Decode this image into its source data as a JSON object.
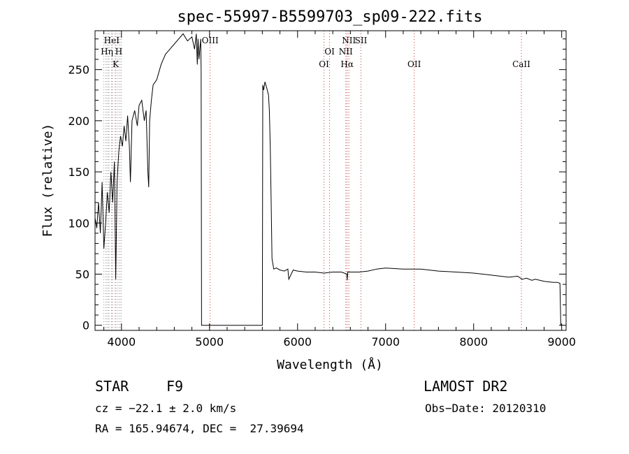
{
  "chart_data": {
    "type": "line",
    "title": "spec-55997-B5599703_sp09-222.fits",
    "xlabel": "Wavelength (Å)",
    "ylabel": "Flux (relative)",
    "xlim": [
      3700,
      9050
    ],
    "ylim": [
      -5,
      288
    ],
    "xticks": [
      4000,
      5000,
      6000,
      7000,
      8000,
      9000
    ],
    "yticks": [
      0,
      50,
      100,
      150,
      200,
      250
    ],
    "grid": false,
    "spectrum": {
      "x": [
        3700,
        3720,
        3740,
        3760,
        3780,
        3800,
        3820,
        3840,
        3860,
        3880,
        3900,
        3920,
        3935,
        3950,
        3970,
        3990,
        4010,
        4030,
        4050,
        4070,
        4090,
        4102,
        4120,
        4150,
        4180,
        4200,
        4230,
        4260,
        4280,
        4300,
        4310,
        4320,
        4340,
        4360,
        4400,
        4450,
        4500,
        4550,
        4600,
        4650,
        4700,
        4750,
        4800,
        4830,
        4850,
        4861,
        4870,
        4880,
        4890,
        4900,
        4905,
        4910,
        4920,
        5600,
        5605,
        5615,
        5630,
        5650,
        5670,
        5680,
        5690,
        5700,
        5710,
        5730,
        5760,
        5800,
        5850,
        5890,
        5900,
        5950,
        6000,
        6100,
        6200,
        6300,
        6400,
        6500,
        6560,
        6563,
        6570,
        6600,
        6700,
        6800,
        6900,
        7000,
        7200,
        7400,
        7600,
        7800,
        8000,
        8200,
        8400,
        8500,
        8550,
        8600,
        8662,
        8700,
        8800,
        8900,
        8950,
        8980,
        8985,
        8990,
        9000
      ],
      "y": [
        105,
        95,
        120,
        90,
        140,
        75,
        100,
        130,
        110,
        150,
        120,
        160,
        45,
        140,
        170,
        185,
        175,
        195,
        180,
        205,
        175,
        140,
        200,
        210,
        195,
        215,
        220,
        200,
        210,
        150,
        135,
        200,
        220,
        235,
        240,
        255,
        265,
        270,
        275,
        280,
        285,
        278,
        282,
        270,
        285,
        255,
        280,
        260,
        270,
        280,
        250,
        0,
        0,
        0,
        235,
        230,
        238,
        232,
        225,
        210,
        175,
        120,
        65,
        55,
        56,
        54,
        53,
        55,
        45,
        54,
        53,
        52,
        52,
        51,
        52,
        52,
        50,
        44,
        52,
        52,
        52,
        53,
        55,
        56,
        55,
        55,
        53,
        52,
        51,
        49,
        47,
        48,
        45,
        46,
        44,
        45,
        43,
        42,
        42,
        41,
        20,
        0,
        0
      ]
    },
    "emission_lines": [
      {
        "label": "HeI",
        "wave": 3889,
        "row": 0,
        "color": "#cc3333"
      },
      {
        "label": "Hη",
        "wave": 3835,
        "row": 1,
        "color": "#999999"
      },
      {
        "label": "H",
        "wave": 3970,
        "row": 1,
        "color": "#999999"
      },
      {
        "label": "K",
        "wave": 3934,
        "row": 2,
        "color": "#999999"
      },
      {
        "label": "OIII",
        "wave": 5007,
        "row": 0,
        "color": "#cc3333"
      },
      {
        "label": "OI",
        "wave": 6364,
        "row": 1,
        "color": "#cc3333"
      },
      {
        "label": "OI",
        "wave": 6300,
        "row": 2,
        "color": "#cc3333"
      },
      {
        "label": "NII",
        "wave": 6583,
        "row": 0,
        "color": "#cc3333"
      },
      {
        "label": "SII",
        "wave": 6720,
        "row": 0,
        "color": "#cc3333"
      },
      {
        "label": "NII",
        "wave": 6548,
        "row": 1,
        "color": "#cc3333"
      },
      {
        "label": "Hα",
        "wave": 6563,
        "row": 2,
        "color": "#cc3333"
      },
      {
        "label": "OII",
        "wave": 7325,
        "row": 2,
        "color": "#cc3333"
      },
      {
        "label": "CaII",
        "wave": 8542,
        "row": 2,
        "color": "#cc3333"
      }
    ],
    "extra_dotted_lines": [
      3798,
      3820,
      3850,
      3860,
      3900,
      3925,
      3950,
      3985,
      4000
    ]
  },
  "info": {
    "class_label": "STAR",
    "subclass": "F9",
    "survey": "LAMOST DR2",
    "cz": "cz = −22.1 ± 2.0 km/s",
    "obs_date": "Obs−Date: 20120310",
    "coords": "RA = 165.94674, DEC =  27.39694"
  }
}
